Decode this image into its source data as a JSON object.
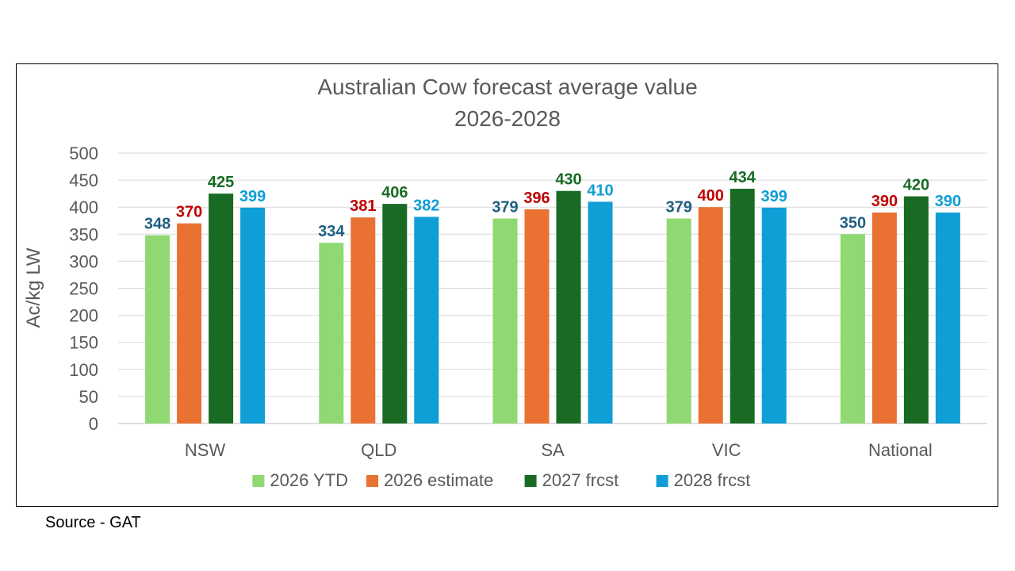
{
  "chart_data": {
    "type": "bar",
    "title": "Australian Cow forecast average value",
    "subtitle": "2026-2028",
    "xlabel": "",
    "ylabel": "Ac/kg LW",
    "ylim": [
      0,
      500
    ],
    "yticks": [
      0,
      50,
      100,
      150,
      200,
      250,
      300,
      350,
      400,
      450,
      500
    ],
    "grid": true,
    "legend_position": "bottom",
    "categories": [
      "NSW",
      "QLD",
      "SA",
      "VIC",
      "National"
    ],
    "series": [
      {
        "name": "2026 YTD",
        "values": [
          348,
          334,
          379,
          379,
          350
        ],
        "color": "#8fd872",
        "label_color": "#1f5f80"
      },
      {
        "name": "2026 estimate",
        "values": [
          370,
          381,
          396,
          400,
          390
        ],
        "color": "#e97132",
        "label_color": "#c00000"
      },
      {
        "name": "2027 frcst",
        "values": [
          425,
          406,
          430,
          434,
          420
        ],
        "color": "#196b24",
        "label_color": "#196b24"
      },
      {
        "name": "2028 frcst",
        "values": [
          399,
          382,
          410,
          399,
          390
        ],
        "color": "#0f9ed5",
        "label_color": "#0f9ed5"
      }
    ]
  },
  "source_note": "Source - GAT"
}
